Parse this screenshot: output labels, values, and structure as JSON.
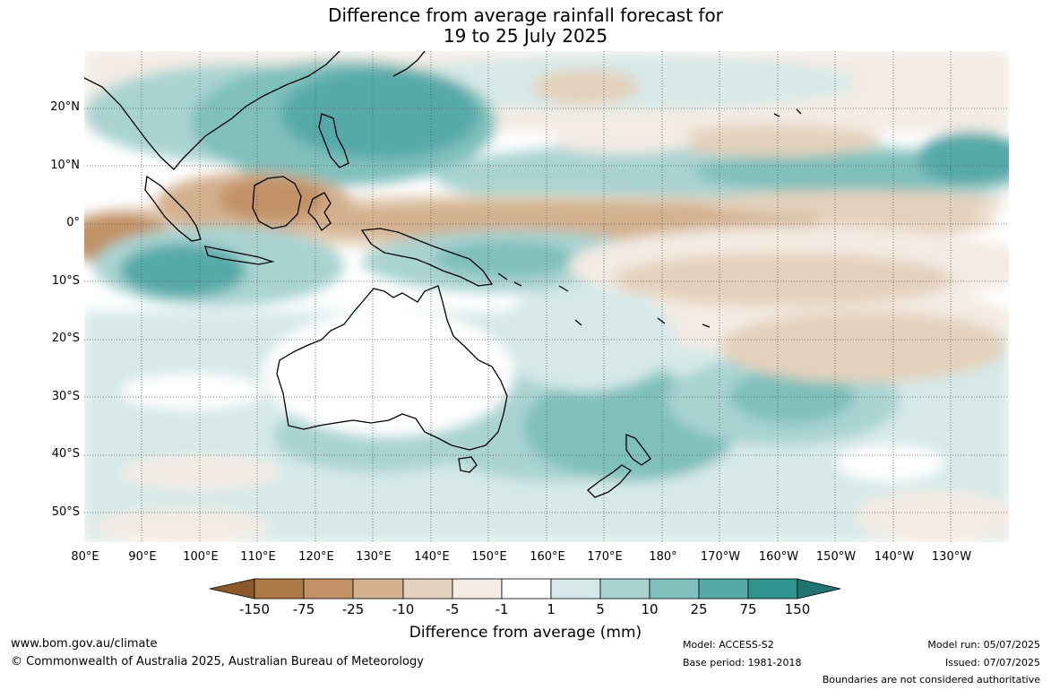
{
  "title": {
    "line1": "Difference from average rainfall forecast for",
    "line2": "19 to 25 July 2025"
  },
  "map": {
    "lat_labels": [
      "20°N",
      "10°N",
      "0°",
      "10°S",
      "20°S",
      "30°S",
      "40°S",
      "50°S"
    ],
    "lon_labels": [
      "80°E",
      "90°E",
      "100°E",
      "110°E",
      "120°E",
      "130°E",
      "140°E",
      "150°E",
      "160°E",
      "170°E",
      "180°",
      "170°W",
      "160°W",
      "150°W",
      "140°W",
      "130°W"
    ]
  },
  "colorbar": {
    "ticks": [
      "-150",
      "-75",
      "-25",
      "-10",
      "-5",
      "-1",
      "1",
      "5",
      "10",
      "25",
      "75",
      "150"
    ],
    "colors": [
      "#8c5a2a",
      "#ad7a45",
      "#c29266",
      "#d3b08e",
      "#e4d1bc",
      "#f3ebe4",
      "#ffffff",
      "#d6e9e8",
      "#a9d3d1",
      "#7fbfbc",
      "#55a9a8",
      "#2f9390",
      "#217371"
    ],
    "title": "Difference from average (mm)"
  },
  "footer": {
    "website": "www.bom.gov.au/climate",
    "copyright": "© Commonwealth of Australia 2025, Australian Bureau of Meteorology",
    "model": "Model: ACCESS-S2",
    "base_period": "Base period: 1981-2018",
    "model_run": "Model run: 05/07/2025",
    "issued": "Issued: 07/07/2025",
    "disclaimer": "Boundaries are not considered authoritative"
  }
}
